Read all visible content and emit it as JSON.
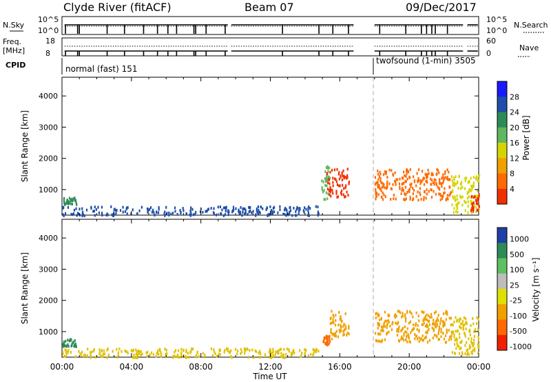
{
  "header": {
    "station": "Clyde River (fitACF)",
    "beam": "Beam 07",
    "date": "09/Dec/2017"
  },
  "panels": {
    "nsky_label": "N.Sky",
    "nsky_ticks": [
      "10^5",
      "10^0"
    ],
    "nsearch_label": "N.Search",
    "nsearch_ticks": [
      "10^5",
      "10^0"
    ],
    "freq_label_line1": "Freq.",
    "freq_label_line2": "[MHz]",
    "freq_ticks": [
      "18",
      "8"
    ],
    "nave_label": "Nave",
    "nave_ticks": [
      "60",
      "0"
    ],
    "cpid_label": "CPID",
    "cpid_segments": [
      {
        "label": "normal (fast) 151",
        "start_hour": 0.0
      },
      {
        "label": "twofsound (1-min) 3505",
        "start_hour": 18.0
      }
    ]
  },
  "chart_data": [
    {
      "type": "heatmap",
      "name": "power",
      "xlabel": "",
      "ylabel": "Slant Range [km]",
      "xlim": [
        0,
        24
      ],
      "ylim": [
        180,
        4600
      ],
      "yticks": [
        "1000",
        "2000",
        "3000",
        "4000"
      ],
      "colorbar_label": "Power [dB]",
      "colorbar_ticks": [
        "4",
        "8",
        "12",
        "16",
        "20",
        "24",
        "28"
      ],
      "colorbar_colors": [
        "#1a1aff",
        "#1f4fa8",
        "#2e8b57",
        "#5fb860",
        "#d4d400",
        "#f0a000",
        "#ff6a00",
        "#f03000"
      ],
      "regions": [
        {
          "hours": [
            0.0,
            14.8
          ],
          "range_km": [
            200,
            500
          ],
          "level": "low",
          "color": "#1f4fa8"
        },
        {
          "hours": [
            0.0,
            0.8
          ],
          "range_km": [
            550,
            800
          ],
          "level": "mid",
          "color": "#2e8b57"
        },
        {
          "hours": [
            14.9,
            15.4
          ],
          "range_km": [
            700,
            1800
          ],
          "level": "mid",
          "color": "#5fb860"
        },
        {
          "hours": [
            15.2,
            16.5
          ],
          "range_km": [
            800,
            1700
          ],
          "level": "high",
          "color": "#f03000"
        },
        {
          "hours": [
            18.0,
            22.4
          ],
          "range_km": [
            700,
            1700
          ],
          "level": "high",
          "color": "#ff6a00"
        },
        {
          "hours": [
            22.4,
            24.0
          ],
          "range_km": [
            300,
            1500
          ],
          "level": "mid",
          "color": "#d4d400"
        },
        {
          "hours": [
            23.5,
            24.0
          ],
          "range_km": [
            300,
            900
          ],
          "level": "high",
          "color": "#f03000"
        }
      ]
    },
    {
      "type": "heatmap",
      "name": "velocity",
      "xlabel": "Time UT",
      "ylabel": "Slant Range [km]",
      "xlim": [
        0,
        24
      ],
      "ylim": [
        180,
        4600
      ],
      "xticks": [
        "00:00",
        "04:00",
        "08:00",
        "12:00",
        "16:00",
        "20:00",
        "00:00"
      ],
      "yticks": [
        "1000",
        "2000",
        "3000",
        "4000"
      ],
      "colorbar_label": "Velocity [m s⁻¹]",
      "colorbar_ticks": [
        "1000",
        "500",
        "100",
        "25",
        "-25",
        "-100",
        "-500",
        "-1000"
      ],
      "colorbar_colors": [
        "#1f3fa8",
        "#2e8b57",
        "#5fc060",
        "#bdbdbd",
        "#e0e000",
        "#f0a000",
        "#ff6a00",
        "#f02000"
      ],
      "regions": [
        {
          "hours": [
            0.0,
            14.8
          ],
          "range_km": [
            200,
            500
          ],
          "level": "-25",
          "color": "#e0c000"
        },
        {
          "hours": [
            0.0,
            0.8
          ],
          "range_km": [
            550,
            800
          ],
          "level": "100",
          "color": "#2e8b57"
        },
        {
          "hours": [
            15.0,
            15.4
          ],
          "range_km": [
            600,
            900
          ],
          "level": "-500",
          "color": "#ff6a00"
        },
        {
          "hours": [
            15.4,
            16.5
          ],
          "range_km": [
            800,
            1700
          ],
          "level": "-100",
          "color": "#f0a000"
        },
        {
          "hours": [
            18.0,
            22.4
          ],
          "range_km": [
            700,
            1700
          ],
          "level": "-100",
          "color": "#f0a000"
        },
        {
          "hours": [
            22.4,
            24.0
          ],
          "range_km": [
            300,
            1500
          ],
          "level": "-25",
          "color": "#e0c000"
        }
      ]
    }
  ]
}
